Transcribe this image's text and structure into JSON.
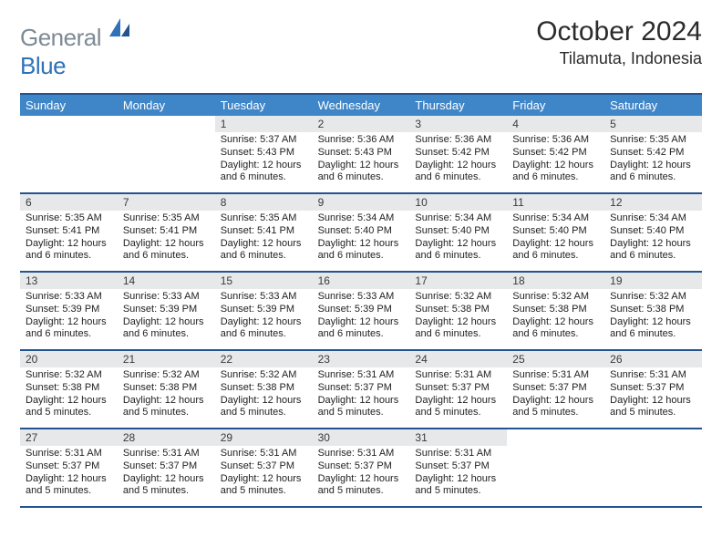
{
  "brand": {
    "part1": "General",
    "part2": "Blue"
  },
  "title": "October 2024",
  "location": "Tilamuta, Indonesia",
  "colors": {
    "header_bar": "#3f86c8",
    "rule": "#23548f",
    "num_bg": "#e6e8ea",
    "text": "#222222",
    "logo_gray": "#7e8a94",
    "logo_blue": "#2f72b8",
    "background": "#ffffff"
  },
  "day_names": [
    "Sunday",
    "Monday",
    "Tuesday",
    "Wednesday",
    "Thursday",
    "Friday",
    "Saturday"
  ],
  "weeks": [
    [
      {
        "n": "",
        "lines": []
      },
      {
        "n": "",
        "lines": []
      },
      {
        "n": "1",
        "lines": [
          "Sunrise: 5:37 AM",
          "Sunset: 5:43 PM",
          "Daylight: 12 hours",
          "and 6 minutes."
        ]
      },
      {
        "n": "2",
        "lines": [
          "Sunrise: 5:36 AM",
          "Sunset: 5:43 PM",
          "Daylight: 12 hours",
          "and 6 minutes."
        ]
      },
      {
        "n": "3",
        "lines": [
          "Sunrise: 5:36 AM",
          "Sunset: 5:42 PM",
          "Daylight: 12 hours",
          "and 6 minutes."
        ]
      },
      {
        "n": "4",
        "lines": [
          "Sunrise: 5:36 AM",
          "Sunset: 5:42 PM",
          "Daylight: 12 hours",
          "and 6 minutes."
        ]
      },
      {
        "n": "5",
        "lines": [
          "Sunrise: 5:35 AM",
          "Sunset: 5:42 PM",
          "Daylight: 12 hours",
          "and 6 minutes."
        ]
      }
    ],
    [
      {
        "n": "6",
        "lines": [
          "Sunrise: 5:35 AM",
          "Sunset: 5:41 PM",
          "Daylight: 12 hours",
          "and 6 minutes."
        ]
      },
      {
        "n": "7",
        "lines": [
          "Sunrise: 5:35 AM",
          "Sunset: 5:41 PM",
          "Daylight: 12 hours",
          "and 6 minutes."
        ]
      },
      {
        "n": "8",
        "lines": [
          "Sunrise: 5:35 AM",
          "Sunset: 5:41 PM",
          "Daylight: 12 hours",
          "and 6 minutes."
        ]
      },
      {
        "n": "9",
        "lines": [
          "Sunrise: 5:34 AM",
          "Sunset: 5:40 PM",
          "Daylight: 12 hours",
          "and 6 minutes."
        ]
      },
      {
        "n": "10",
        "lines": [
          "Sunrise: 5:34 AM",
          "Sunset: 5:40 PM",
          "Daylight: 12 hours",
          "and 6 minutes."
        ]
      },
      {
        "n": "11",
        "lines": [
          "Sunrise: 5:34 AM",
          "Sunset: 5:40 PM",
          "Daylight: 12 hours",
          "and 6 minutes."
        ]
      },
      {
        "n": "12",
        "lines": [
          "Sunrise: 5:34 AM",
          "Sunset: 5:40 PM",
          "Daylight: 12 hours",
          "and 6 minutes."
        ]
      }
    ],
    [
      {
        "n": "13",
        "lines": [
          "Sunrise: 5:33 AM",
          "Sunset: 5:39 PM",
          "Daylight: 12 hours",
          "and 6 minutes."
        ]
      },
      {
        "n": "14",
        "lines": [
          "Sunrise: 5:33 AM",
          "Sunset: 5:39 PM",
          "Daylight: 12 hours",
          "and 6 minutes."
        ]
      },
      {
        "n": "15",
        "lines": [
          "Sunrise: 5:33 AM",
          "Sunset: 5:39 PM",
          "Daylight: 12 hours",
          "and 6 minutes."
        ]
      },
      {
        "n": "16",
        "lines": [
          "Sunrise: 5:33 AM",
          "Sunset: 5:39 PM",
          "Daylight: 12 hours",
          "and 6 minutes."
        ]
      },
      {
        "n": "17",
        "lines": [
          "Sunrise: 5:32 AM",
          "Sunset: 5:38 PM",
          "Daylight: 12 hours",
          "and 6 minutes."
        ]
      },
      {
        "n": "18",
        "lines": [
          "Sunrise: 5:32 AM",
          "Sunset: 5:38 PM",
          "Daylight: 12 hours",
          "and 6 minutes."
        ]
      },
      {
        "n": "19",
        "lines": [
          "Sunrise: 5:32 AM",
          "Sunset: 5:38 PM",
          "Daylight: 12 hours",
          "and 6 minutes."
        ]
      }
    ],
    [
      {
        "n": "20",
        "lines": [
          "Sunrise: 5:32 AM",
          "Sunset: 5:38 PM",
          "Daylight: 12 hours",
          "and 5 minutes."
        ]
      },
      {
        "n": "21",
        "lines": [
          "Sunrise: 5:32 AM",
          "Sunset: 5:38 PM",
          "Daylight: 12 hours",
          "and 5 minutes."
        ]
      },
      {
        "n": "22",
        "lines": [
          "Sunrise: 5:32 AM",
          "Sunset: 5:38 PM",
          "Daylight: 12 hours",
          "and 5 minutes."
        ]
      },
      {
        "n": "23",
        "lines": [
          "Sunrise: 5:31 AM",
          "Sunset: 5:37 PM",
          "Daylight: 12 hours",
          "and 5 minutes."
        ]
      },
      {
        "n": "24",
        "lines": [
          "Sunrise: 5:31 AM",
          "Sunset: 5:37 PM",
          "Daylight: 12 hours",
          "and 5 minutes."
        ]
      },
      {
        "n": "25",
        "lines": [
          "Sunrise: 5:31 AM",
          "Sunset: 5:37 PM",
          "Daylight: 12 hours",
          "and 5 minutes."
        ]
      },
      {
        "n": "26",
        "lines": [
          "Sunrise: 5:31 AM",
          "Sunset: 5:37 PM",
          "Daylight: 12 hours",
          "and 5 minutes."
        ]
      }
    ],
    [
      {
        "n": "27",
        "lines": [
          "Sunrise: 5:31 AM",
          "Sunset: 5:37 PM",
          "Daylight: 12 hours",
          "and 5 minutes."
        ]
      },
      {
        "n": "28",
        "lines": [
          "Sunrise: 5:31 AM",
          "Sunset: 5:37 PM",
          "Daylight: 12 hours",
          "and 5 minutes."
        ]
      },
      {
        "n": "29",
        "lines": [
          "Sunrise: 5:31 AM",
          "Sunset: 5:37 PM",
          "Daylight: 12 hours",
          "and 5 minutes."
        ]
      },
      {
        "n": "30",
        "lines": [
          "Sunrise: 5:31 AM",
          "Sunset: 5:37 PM",
          "Daylight: 12 hours",
          "and 5 minutes."
        ]
      },
      {
        "n": "31",
        "lines": [
          "Sunrise: 5:31 AM",
          "Sunset: 5:37 PM",
          "Daylight: 12 hours",
          "and 5 minutes."
        ]
      },
      {
        "n": "",
        "lines": []
      },
      {
        "n": "",
        "lines": []
      }
    ]
  ]
}
